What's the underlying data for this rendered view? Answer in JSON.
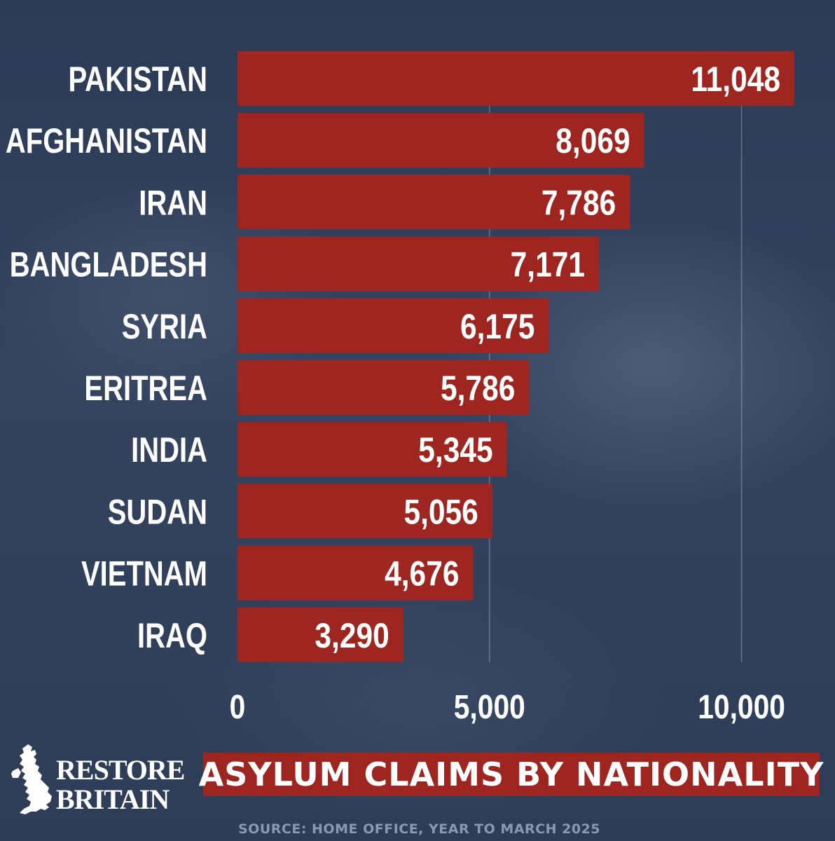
{
  "chart_data": {
    "type": "bar",
    "orientation": "horizontal",
    "title": "ASYLUM CLAIMS BY NATIONALITY",
    "source": "SOURCE: HOME OFFICE, YEAR TO MARCH 2025",
    "categories": [
      "PAKISTAN",
      "AFGHANISTAN",
      "IRAN",
      "BANGLADESH",
      "SYRIA",
      "ERITREA",
      "INDIA",
      "SUDAN",
      "VIETNAM",
      "IRAQ"
    ],
    "values": [
      11048,
      8069,
      7786,
      7171,
      6175,
      5786,
      5345,
      5056,
      4676,
      3290
    ],
    "value_labels": [
      "11,048",
      "8,069",
      "7,786",
      "7,171",
      "6,175",
      "5,786",
      "5,345",
      "5,056",
      "4,676",
      "3,290"
    ],
    "xticks": [
      0,
      5000,
      10000
    ],
    "xtick_labels": [
      "0",
      "5,000",
      "10,000"
    ],
    "xlim": [
      0,
      11048
    ],
    "grid": "vertical",
    "xlabel": "",
    "ylabel": "",
    "colors": {
      "bar": "#9e2520",
      "text": "#ffffff",
      "background": "#2f3f5a",
      "source_text": "#8b98ad"
    }
  },
  "brand": {
    "line1": "RESTORE",
    "line2": "BRITAIN",
    "icon": "uk-map-icon"
  }
}
